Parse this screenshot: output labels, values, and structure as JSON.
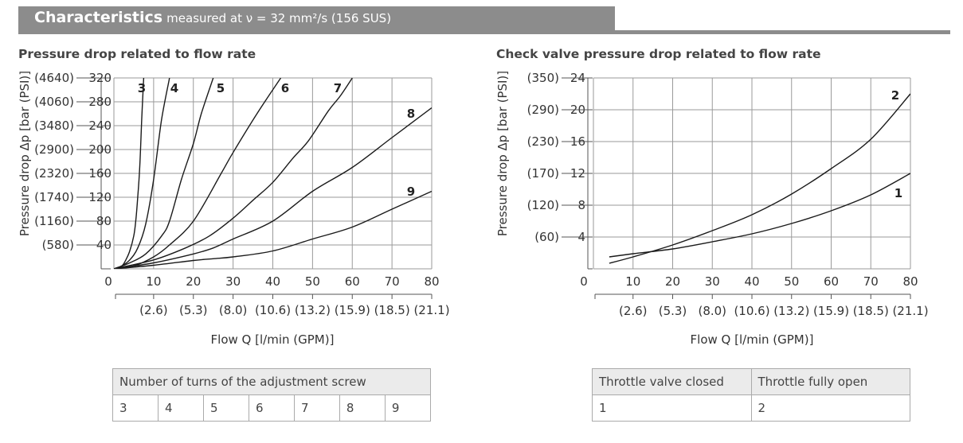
{
  "header": {
    "title": "Characteristics",
    "subtitle": "measured at ν = 32 mm²/s (156 SUS)",
    "color": "#8c8c8c"
  },
  "chart_data": [
    {
      "type": "line",
      "title": "Pressure drop related to flow rate",
      "ylabel": "Pressure drop Δp [bar (PSI)]",
      "xlabel": "Flow Q [l/min (GPM)]",
      "xlim": [
        0,
        80
      ],
      "ylim": [
        0,
        320
      ],
      "grid": true,
      "x_ticks": [
        "0",
        "10",
        "20",
        "30",
        "40",
        "50",
        "60",
        "70",
        "80"
      ],
      "x_ticks_gpm": [
        "(2.6)",
        "(5.3)",
        "(8.0)",
        "(10.6)",
        "(13.2)",
        "(15.9)",
        "(18.5)",
        "(21.1)"
      ],
      "y_ticks": [
        "40",
        "80",
        "120",
        "160",
        "200",
        "240",
        "280",
        "320"
      ],
      "y_ticks_psi": [
        "(580)",
        "(1160)",
        "(1740)",
        "(2320)",
        "(2900)",
        "(3480)",
        "(4060)",
        "(4640)"
      ],
      "series": [
        {
          "name": "3",
          "x": [
            0,
            2,
            3,
            4,
            5,
            5.5,
            6,
            6.5,
            7,
            7.5
          ],
          "y": [
            0,
            5,
            15,
            30,
            55,
            80,
            120,
            170,
            250,
            320
          ]
        },
        {
          "name": "4",
          "x": [
            0,
            2,
            4,
            6,
            8,
            10,
            12,
            14
          ],
          "y": [
            0,
            5,
            15,
            35,
            75,
            150,
            250,
            320
          ]
        },
        {
          "name": "5",
          "x": [
            0,
            4,
            8,
            12,
            14,
            17,
            20,
            22,
            25
          ],
          "y": [
            0,
            10,
            25,
            55,
            80,
            150,
            210,
            260,
            320
          ]
        },
        {
          "name": "6",
          "x": [
            0,
            5,
            10,
            14,
            20,
            27,
            30,
            36,
            42
          ],
          "y": [
            0,
            5,
            20,
            40,
            80,
            160,
            195,
            260,
            320
          ]
        },
        {
          "name": "7",
          "x": [
            0,
            10,
            18,
            24,
            30,
            35,
            40,
            45,
            49,
            54,
            57,
            60
          ],
          "y": [
            0,
            15,
            35,
            55,
            85,
            115,
            145,
            185,
            215,
            265,
            290,
            320
          ]
        },
        {
          "name": "8",
          "x": [
            0,
            10,
            20,
            25,
            30,
            40,
            50,
            60,
            70,
            80
          ],
          "y": [
            0,
            10,
            25,
            35,
            50,
            80,
            130,
            170,
            220,
            270
          ]
        },
        {
          "name": "9",
          "x": [
            0,
            10,
            20,
            25,
            30,
            40,
            50,
            60,
            70,
            80
          ],
          "y": [
            0,
            6,
            14,
            17,
            20,
            30,
            50,
            70,
            100,
            130
          ]
        }
      ],
      "legend_title": "Number of turns of the adjustment screw",
      "legend_items": [
        "3",
        "4",
        "5",
        "6",
        "7",
        "8",
        "9"
      ]
    },
    {
      "type": "line",
      "title": "Check valve pressure drop related to flow rate",
      "ylabel": "Pressure drop Δp [bar (PSI)]",
      "xlabel": "Flow Q [l/min (GPM)]",
      "xlim": [
        0,
        80
      ],
      "ylim": [
        0,
        24
      ],
      "grid": true,
      "x_ticks": [
        "0",
        "10",
        "20",
        "30",
        "40",
        "50",
        "60",
        "70",
        "80"
      ],
      "x_ticks_gpm": [
        "(2.6)",
        "(5.3)",
        "(8.0)",
        "(10.6)",
        "(13.2)",
        "(15.9)",
        "(18.5)",
        "(21.1)"
      ],
      "y_ticks": [
        "4",
        "8",
        "12",
        "16",
        "20",
        "24"
      ],
      "y_ticks_psi": [
        "(60)",
        "(120)",
        "(170)",
        "(230)",
        "(290)",
        "(350)"
      ],
      "series": [
        {
          "name": "1",
          "x": [
            4,
            10,
            20,
            30,
            40,
            50,
            60,
            70,
            80
          ],
          "y": [
            1.5,
            1.9,
            2.5,
            3.4,
            4.4,
            5.7,
            7.3,
            9.3,
            12.0
          ]
        },
        {
          "name": "2",
          "x": [
            4,
            10,
            20,
            30,
            40,
            50,
            60,
            70,
            80
          ],
          "y": [
            0.7,
            1.5,
            3.0,
            4.8,
            6.8,
            9.4,
            12.6,
            16.3,
            22.0
          ]
        }
      ],
      "legend_headers": [
        "Throttle valve closed",
        "Throttle fully open"
      ],
      "legend_items": [
        "1",
        "2"
      ]
    }
  ]
}
